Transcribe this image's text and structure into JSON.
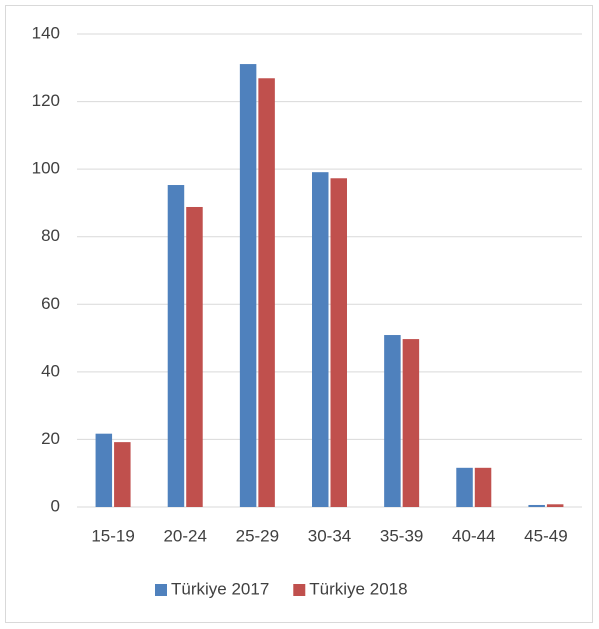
{
  "chart_data": {
    "type": "bar",
    "categories": [
      "15-19",
      "20-24",
      "25-29",
      "30-34",
      "35-39",
      "40-44",
      "45-49"
    ],
    "series": [
      {
        "name": "Türkiye 2017",
        "color": "#4f81bd",
        "values": [
          21.7,
          95.3,
          131.1,
          99.1,
          50.9,
          11.6,
          0.6
        ]
      },
      {
        "name": "Türkiye 2018",
        "color": "#c0504d",
        "values": [
          19.2,
          88.8,
          126.9,
          97.3,
          49.7,
          11.6,
          0.8
        ]
      }
    ],
    "ylim": [
      0,
      140
    ],
    "yticks": [
      0,
      20,
      40,
      60,
      80,
      100,
      120,
      140
    ],
    "grid": true,
    "legend": "bottom"
  }
}
